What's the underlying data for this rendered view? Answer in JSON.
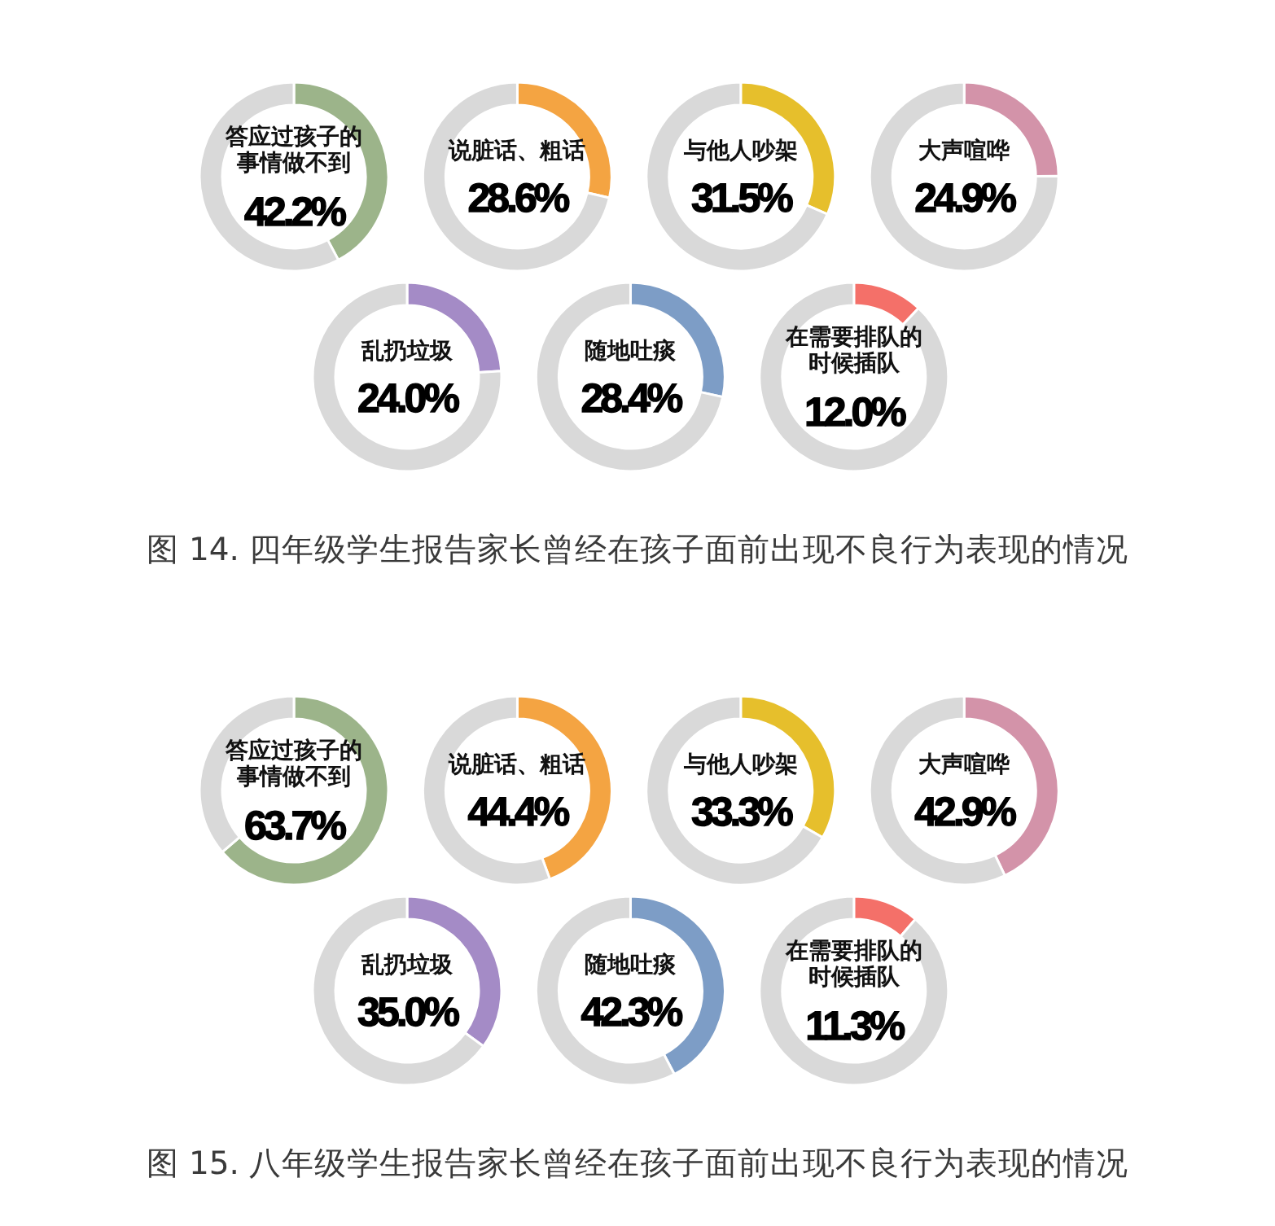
{
  "chart_data": [
    {
      "type": "donut",
      "title": "答应过孩子的事情做不到",
      "subtitle": "42.2%",
      "categories": [
        null,
        null
      ],
      "values": [
        42.2,
        57.8
      ],
      "colors": [
        "#9cb48a",
        "#d9d9d9"
      ]
    },
    {
      "type": "donut",
      "title": "说脏话、粗话",
      "subtitle": "28.6%",
      "categories": [
        null,
        null
      ],
      "values": [
        28.6,
        71.4
      ],
      "colors": [
        "#f4a442",
        "#d9d9d9"
      ]
    },
    {
      "type": "donut",
      "title": "与他人吵架",
      "subtitle": "31.5%",
      "categories": [
        null,
        null
      ],
      "values": [
        31.5,
        68.5
      ],
      "colors": [
        "#e6bf2c",
        "#d9d9d9"
      ]
    },
    {
      "type": "donut",
      "title": "大声喧哗",
      "subtitle": "24.9%",
      "categories": [
        null,
        null
      ],
      "values": [
        24.9,
        75.1
      ],
      "colors": [
        "#d393a9",
        "#d9d9d9"
      ]
    },
    {
      "type": "donut",
      "title": "乱扔垃圾",
      "subtitle": "24.0%",
      "categories": [
        null,
        null
      ],
      "values": [
        24.0,
        76.0
      ],
      "colors": [
        "#a48bc6",
        "#d9d9d9"
      ]
    },
    {
      "type": "donut",
      "title": "随地吐痰",
      "subtitle": "28.4%",
      "categories": [
        null,
        null
      ],
      "values": [
        28.4,
        71.6
      ],
      "colors": [
        "#7d9dc6",
        "#d9d9d9"
      ]
    },
    {
      "type": "donut",
      "title": "在需要排队的时候插队",
      "subtitle": "12.0%",
      "categories": [
        null,
        null
      ],
      "values": [
        12.0,
        88.0
      ],
      "colors": [
        "#f47069",
        "#d9d9d9"
      ]
    },
    {
      "type": "other",
      "annotations": [
        "图 14. 四年级学生报告家长曾经在孩子面前出现不良行为表现的情况"
      ]
    },
    {
      "type": "donut",
      "title": "答应过孩子的事情做不到",
      "subtitle": "63.7%",
      "categories": [
        null,
        null
      ],
      "values": [
        63.7,
        36.3
      ],
      "colors": [
        "#9cb48a",
        "#d9d9d9"
      ]
    },
    {
      "type": "donut",
      "title": "说脏话、粗话",
      "subtitle": "44.4%",
      "categories": [
        null,
        null
      ],
      "values": [
        44.4,
        55.6
      ],
      "colors": [
        "#f4a442",
        "#d9d9d9"
      ]
    },
    {
      "type": "donut",
      "title": "与他人吵架",
      "subtitle": "33.3%",
      "categories": [
        null,
        null
      ],
      "values": [
        33.3,
        66.7
      ],
      "colors": [
        "#e6bf2c",
        "#d9d9d9"
      ]
    },
    {
      "type": "donut",
      "title": "大声喧哗",
      "subtitle": "42.9%",
      "categories": [
        null,
        null
      ],
      "values": [
        42.9,
        57.1
      ],
      "colors": [
        "#d393a9",
        "#d9d9d9"
      ]
    },
    {
      "type": "donut",
      "title": "乱扔垃圾",
      "subtitle": "35.0%",
      "categories": [
        null,
        null
      ],
      "values": [
        35.0,
        65.0
      ],
      "colors": [
        "#a48bc6",
        "#d9d9d9"
      ]
    },
    {
      "type": "donut",
      "title": "随地吐痰",
      "subtitle": "42.3%",
      "categories": [
        null,
        null
      ],
      "values": [
        42.3,
        57.7
      ],
      "colors": [
        "#7d9dc6",
        "#d9d9d9"
      ]
    },
    {
      "type": "donut",
      "title": "在需要排队的时候插队",
      "subtitle": "11.3%",
      "categories": [
        null,
        null
      ],
      "values": [
        11.3,
        88.7
      ],
      "colors": [
        "#f47069",
        "#d9d9d9"
      ]
    },
    {
      "type": "other",
      "annotations": [
        "图 15. 八年级学生报告家长曾经在孩子面前出现不良行为表现的情况"
      ]
    }
  ]
}
